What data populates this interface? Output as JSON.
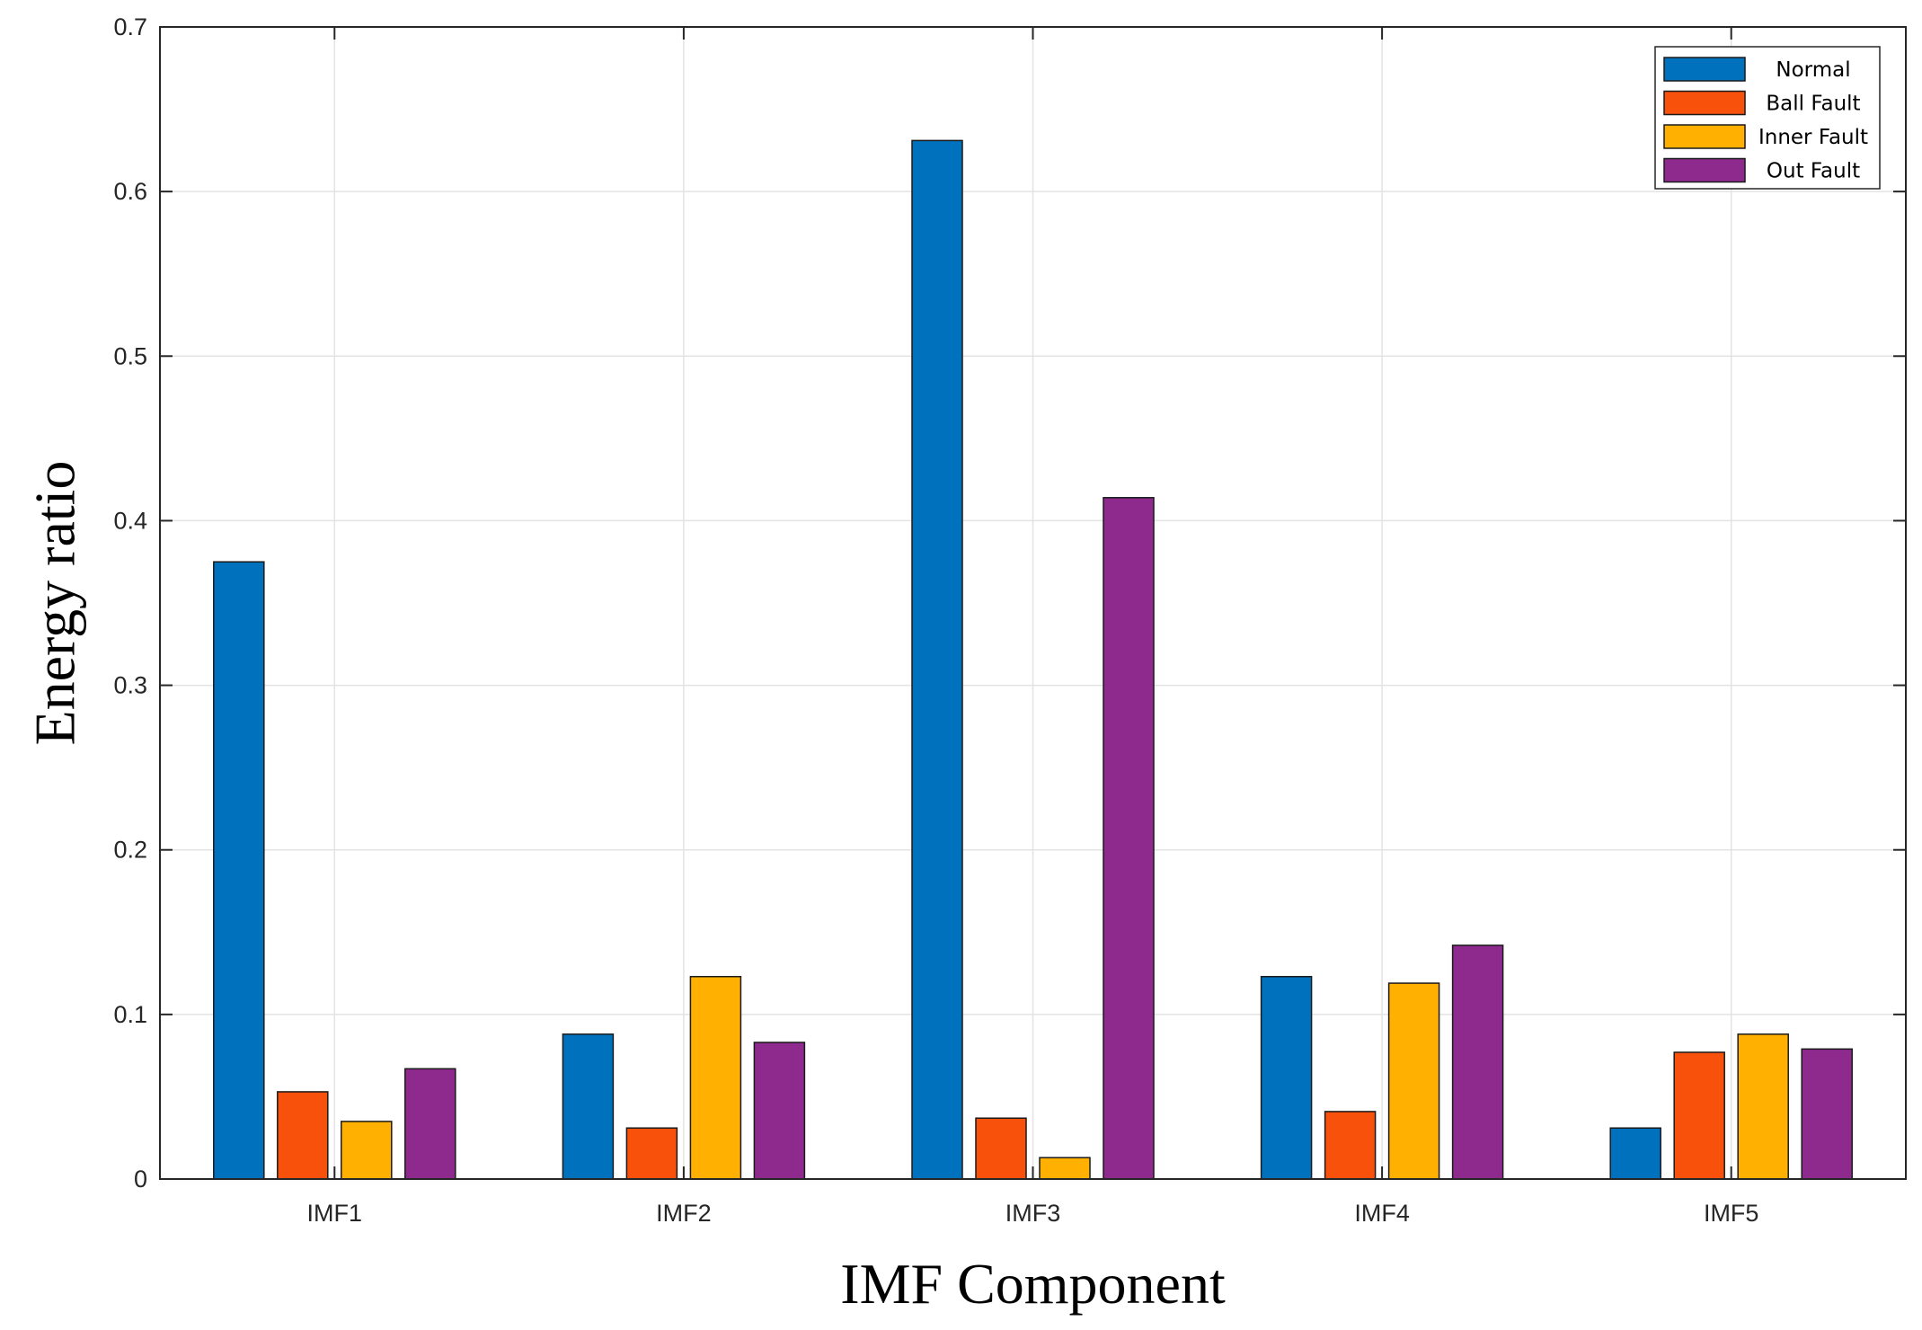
{
  "chart_data": {
    "type": "bar",
    "categories": [
      "IMF1",
      "IMF2",
      "IMF3",
      "IMF4",
      "IMF5"
    ],
    "series": [
      {
        "name": "Normal",
        "color": "#0072BD",
        "values": [
          0.375,
          0.088,
          0.631,
          0.123,
          0.031
        ]
      },
      {
        "name": "Ball Fault",
        "color": "#F7510C",
        "values": [
          0.053,
          0.031,
          0.037,
          0.041,
          0.077
        ]
      },
      {
        "name": "Inner Fault",
        "color": "#FFB000",
        "values": [
          0.035,
          0.123,
          0.013,
          0.119,
          0.088
        ]
      },
      {
        "name": "Out Fault",
        "color": "#8E2A8E",
        "values": [
          0.067,
          0.083,
          0.414,
          0.142,
          0.079
        ]
      }
    ],
    "xlabel": "IMF Component",
    "ylabel": "Energy ratio",
    "ylim": [
      0,
      0.7
    ],
    "yticks": [
      0,
      0.1,
      0.2,
      0.3,
      0.4,
      0.5,
      0.6,
      0.7
    ],
    "ytick_labels": [
      "0",
      "0.1",
      "0.2",
      "0.3",
      "0.4",
      "0.5",
      "0.6",
      "0.7"
    ],
    "grid": true,
    "legend_position": "top-right"
  }
}
